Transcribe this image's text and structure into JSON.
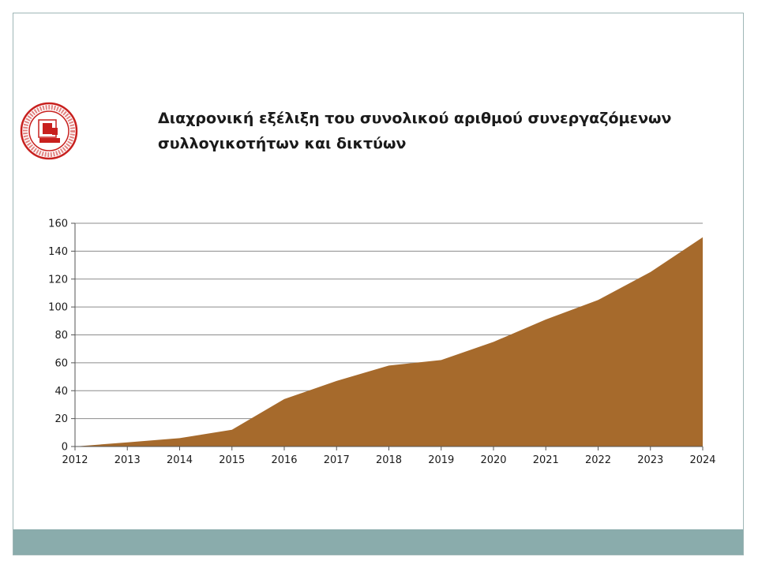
{
  "slide": {
    "title_line1": "Διαχρονική εξέλιξη του συνολικού αριθμού συνεργαζόμενων",
    "title_line2": "συλλογικοτήτων και δικτύων",
    "logo_icon": "institution-seal-icon",
    "accent_color": "#c8201e",
    "footer_color": "#8aacac"
  },
  "chart_data": {
    "type": "area",
    "title": "",
    "xlabel": "",
    "ylabel": "",
    "x": [
      2012,
      2013,
      2014,
      2015,
      2016,
      2017,
      2018,
      2019,
      2020,
      2021,
      2022,
      2023,
      2024
    ],
    "x_tick_labels": [
      "2012",
      "2013",
      "2014",
      "2015",
      "2016",
      "2017",
      "2018",
      "2019",
      "2020",
      "2021",
      "2022",
      "2023",
      "2024"
    ],
    "values": [
      0,
      3,
      6,
      12,
      34,
      47,
      58,
      62,
      75,
      91,
      105,
      125,
      150
    ],
    "ylim": [
      0,
      160
    ],
    "y_ticks": [
      0,
      20,
      40,
      60,
      80,
      100,
      120,
      140,
      160
    ],
    "y_tick_labels": [
      "0",
      "20",
      "40",
      "60",
      "80",
      "100",
      "120",
      "140",
      "160"
    ],
    "fill_color": "#a66a2c",
    "grid": true,
    "legend": false
  }
}
